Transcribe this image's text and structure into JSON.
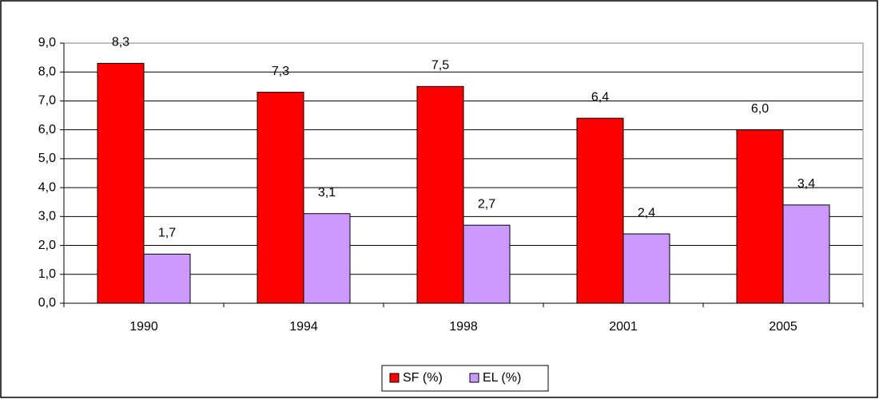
{
  "chart_data": {
    "type": "bar",
    "categories": [
      "1990",
      "1994",
      "1998",
      "2001",
      "2005"
    ],
    "series": [
      {
        "name": "SF (%)",
        "color": "#ff0000",
        "values": [
          8.3,
          7.3,
          7.5,
          6.4,
          6.0
        ],
        "value_labels": [
          "8,3",
          "7,3",
          "7,5",
          "6,4",
          "6,0"
        ]
      },
      {
        "name": "EL (%)",
        "color": "#cc99ff",
        "values": [
          1.7,
          3.1,
          2.7,
          2.4,
          3.4
        ],
        "value_labels": [
          "1,7",
          "3,1",
          "2,7",
          "2,4",
          "3,4"
        ]
      }
    ],
    "ylim": [
      0,
      9
    ],
    "yticks": [
      {
        "value": 0,
        "label": "0,0"
      },
      {
        "value": 1,
        "label": "1,0"
      },
      {
        "value": 2,
        "label": "2,0"
      },
      {
        "value": 3,
        "label": "3,0"
      },
      {
        "value": 4,
        "label": "4,0"
      },
      {
        "value": 5,
        "label": "5,0"
      },
      {
        "value": 6,
        "label": "6,0"
      },
      {
        "value": 7,
        "label": "7,0"
      },
      {
        "value": 8,
        "label": "8,0"
      },
      {
        "value": 9,
        "label": "9,0"
      }
    ],
    "grid": true,
    "legend": "bottom"
  }
}
